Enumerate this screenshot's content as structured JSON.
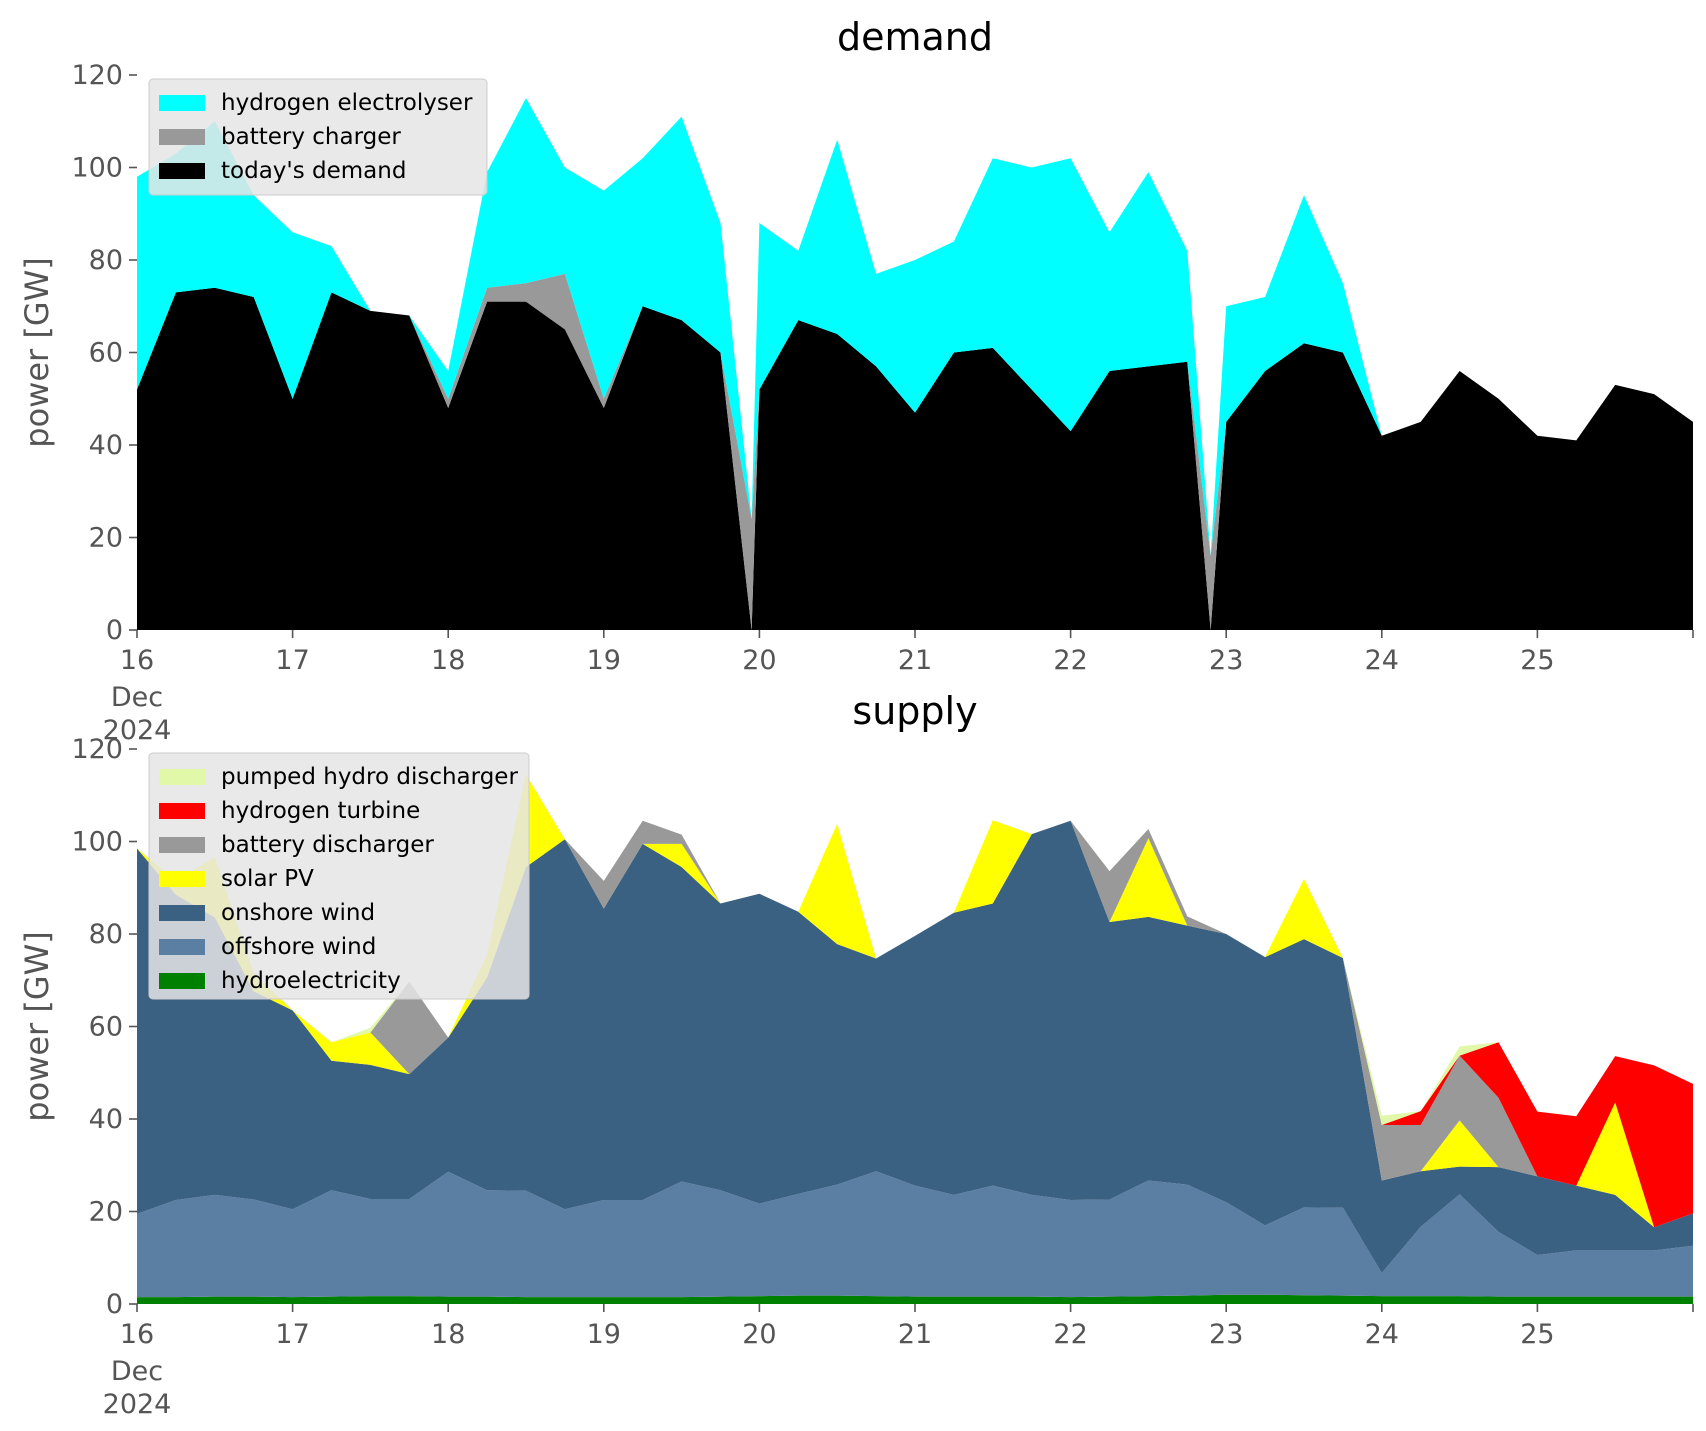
{
  "chart_data": [
    {
      "type": "area",
      "title": "demand",
      "ylabel": "power [GW]",
      "xlabel": "",
      "ylim": [
        0,
        120
      ],
      "yticks": [
        0,
        20,
        40,
        60,
        80,
        100,
        120
      ],
      "xlim": [
        16,
        26
      ],
      "xticks": [
        {
          "value": 16,
          "label": "16",
          "sub": [
            "Dec",
            "2024"
          ]
        },
        {
          "value": 17,
          "label": "17"
        },
        {
          "value": 18,
          "label": "18"
        },
        {
          "value": 19,
          "label": "19"
        },
        {
          "value": 20,
          "label": "20"
        },
        {
          "value": 21,
          "label": "21"
        },
        {
          "value": 22,
          "label": "22"
        },
        {
          "value": 23,
          "label": "23"
        },
        {
          "value": 24,
          "label": "24"
        },
        {
          "value": 25,
          "label": "25"
        }
      ],
      "stacked": true,
      "legend_position": "top-left",
      "grid": false,
      "x": [
        16.0,
        16.25,
        16.5,
        16.75,
        17.0,
        17.25,
        17.5,
        17.75,
        18.0,
        18.25,
        18.5,
        18.75,
        19.0,
        19.25,
        19.5,
        19.75,
        19.95,
        20.0,
        20.25,
        20.5,
        20.75,
        21.0,
        21.25,
        21.5,
        21.75,
        22.0,
        22.25,
        22.5,
        22.75,
        22.9,
        23.0,
        23.25,
        23.5,
        23.75,
        24.0,
        24.25,
        24.5,
        24.75,
        25.0,
        25.25,
        25.5,
        25.75,
        26.0
      ],
      "series": [
        {
          "name": "today's demand",
          "color": "#000000",
          "values": [
            52,
            73,
            74,
            72,
            50,
            73,
            69,
            68,
            48,
            71,
            71,
            65,
            48,
            70,
            67,
            60,
            0,
            52,
            67,
            64,
            57,
            47,
            60,
            61,
            52,
            43,
            56,
            57,
            58,
            0,
            45,
            56,
            62,
            60,
            42,
            45,
            56,
            50,
            42,
            41,
            53,
            51,
            45
          ]
        },
        {
          "name": "battery charger",
          "color": "#999999",
          "values": [
            0,
            0,
            0,
            0,
            0,
            0,
            0,
            0,
            2,
            3,
            4,
            12,
            2,
            0,
            0,
            0,
            24,
            0,
            0,
            0,
            0,
            0,
            0,
            0,
            0,
            0,
            0,
            0,
            0,
            16,
            0,
            0,
            0,
            0,
            0,
            0,
            0,
            0,
            0,
            0,
            0,
            0,
            0
          ]
        },
        {
          "name": "hydrogen electrolyser",
          "color": "#00ffff",
          "values": [
            46,
            30,
            36,
            22,
            36,
            10,
            0,
            0,
            6,
            25,
            40,
            23,
            45,
            32,
            44,
            28,
            0,
            36,
            15,
            42,
            20,
            33,
            24,
            41,
            48,
            59,
            30,
            42,
            24,
            0,
            25,
            16,
            32,
            15,
            0,
            0,
            0,
            0,
            0,
            0,
            0,
            0,
            0
          ]
        }
      ]
    },
    {
      "type": "area",
      "title": "supply",
      "ylabel": "power [GW]",
      "xlabel": "",
      "ylim": [
        0,
        120
      ],
      "yticks": [
        0,
        20,
        40,
        60,
        80,
        100,
        120
      ],
      "xlim": [
        16,
        26
      ],
      "xticks": [
        {
          "value": 16,
          "label": "16",
          "sub": [
            "Dec",
            "2024"
          ]
        },
        {
          "value": 17,
          "label": "17"
        },
        {
          "value": 18,
          "label": "18"
        },
        {
          "value": 19,
          "label": "19"
        },
        {
          "value": 20,
          "label": "20"
        },
        {
          "value": 21,
          "label": "21"
        },
        {
          "value": 22,
          "label": "22"
        },
        {
          "value": 23,
          "label": "23"
        },
        {
          "value": 24,
          "label": "24"
        },
        {
          "value": 25,
          "label": "25"
        }
      ],
      "stacked": true,
      "legend_position": "top-left",
      "grid": false,
      "x": [
        16.0,
        16.25,
        16.5,
        16.75,
        17.0,
        17.25,
        17.5,
        17.75,
        18.0,
        18.25,
        18.5,
        18.75,
        19.0,
        19.25,
        19.5,
        19.75,
        20.0,
        20.25,
        20.5,
        20.75,
        21.0,
        21.25,
        21.5,
        21.75,
        22.0,
        22.25,
        22.5,
        22.75,
        23.0,
        23.25,
        23.5,
        23.75,
        24.0,
        24.25,
        24.5,
        24.75,
        25.0,
        25.25,
        25.5,
        25.75,
        26.0
      ],
      "series": [
        {
          "name": "hydroelectricity",
          "color": "#008000",
          "values": [
            1.5,
            1.5,
            1.6,
            1.6,
            1.5,
            1.6,
            1.7,
            1.7,
            1.6,
            1.6,
            1.5,
            1.5,
            1.5,
            1.5,
            1.5,
            1.6,
            1.7,
            1.8,
            1.8,
            1.7,
            1.6,
            1.6,
            1.6,
            1.6,
            1.5,
            1.6,
            1.7,
            1.8,
            2.0,
            2.0,
            1.9,
            1.8,
            1.7,
            1.7,
            1.7,
            1.6,
            1.6,
            1.6,
            1.6,
            1.6,
            1.6
          ]
        },
        {
          "name": "offshore wind",
          "color": "#5b7fa3",
          "values": [
            18,
            21,
            22,
            21,
            19,
            23,
            21,
            21,
            27,
            23,
            23,
            19,
            21,
            21,
            25,
            23,
            20,
            22,
            24,
            27,
            24,
            22,
            24,
            22,
            21,
            21,
            25,
            24,
            20,
            15,
            19,
            19,
            5,
            15,
            22,
            14,
            9,
            10,
            10,
            10,
            11
          ]
        },
        {
          "name": "onshore wind",
          "color": "#3b6182",
          "values": [
            79,
            66,
            60,
            45,
            43,
            28,
            29,
            27,
            29,
            46,
            70,
            80,
            63,
            77,
            68,
            62,
            67,
            61,
            52,
            46,
            54,
            61,
            61,
            78,
            82,
            60,
            57,
            56,
            58,
            58,
            58,
            54,
            20,
            12,
            6,
            14,
            17,
            14,
            12,
            5,
            7
          ]
        },
        {
          "name": "solar PV",
          "color": "#ffff00",
          "values": [
            0,
            3,
            13,
            4,
            0,
            4,
            7,
            0,
            0,
            5,
            20,
            0,
            0,
            0,
            5,
            0,
            0,
            0,
            26,
            0,
            0,
            0,
            18,
            0,
            0,
            0,
            17,
            0,
            0,
            0,
            13,
            0,
            0,
            0,
            10,
            0,
            0,
            0,
            20,
            0,
            0
          ]
        },
        {
          "name": "battery discharger",
          "color": "#999999",
          "values": [
            0,
            0,
            0,
            0,
            0,
            0,
            0,
            20,
            0,
            0,
            0,
            0,
            6,
            5,
            2,
            0,
            0,
            0,
            0,
            0,
            0,
            0,
            0,
            0,
            0,
            11,
            2,
            2,
            0,
            0,
            0,
            0,
            12,
            10,
            14,
            15,
            0,
            0,
            0,
            0,
            0
          ]
        },
        {
          "name": "hydrogen turbine",
          "color": "#ff0000",
          "values": [
            0,
            0,
            0,
            0,
            0,
            0,
            0,
            0,
            0,
            0,
            0,
            0,
            0,
            0,
            0,
            0,
            0,
            0,
            0,
            0,
            0,
            0,
            0,
            0,
            0,
            0,
            0,
            0,
            0,
            0,
            0,
            0,
            0,
            3,
            0,
            12,
            14,
            15,
            10,
            35,
            28
          ]
        },
        {
          "name": "pumped hydro discharger",
          "color": "#e0f8a8",
          "values": [
            0,
            0,
            0,
            0,
            0,
            0,
            1,
            0,
            0,
            0,
            0,
            0,
            0,
            0,
            0,
            0,
            0,
            0,
            0,
            0,
            0,
            0,
            0,
            0,
            0,
            0,
            0,
            0,
            0,
            0,
            0,
            0,
            2,
            0,
            2,
            0,
            0,
            0,
            0,
            0,
            0
          ]
        }
      ]
    }
  ]
}
